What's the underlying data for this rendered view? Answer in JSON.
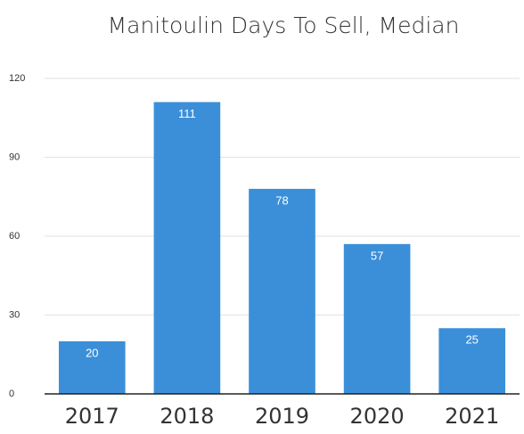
{
  "chart_data": {
    "type": "bar",
    "title": "Manitoulin Days To Sell, Median",
    "categories": [
      "2017",
      "2018",
      "2019",
      "2020",
      "2021"
    ],
    "values": [
      20,
      111,
      78,
      57,
      25
    ],
    "color": "#3b8fd9",
    "ylim": [
      0,
      120
    ],
    "yticks": [
      0,
      30,
      60,
      90,
      120
    ],
    "grid": true
  }
}
